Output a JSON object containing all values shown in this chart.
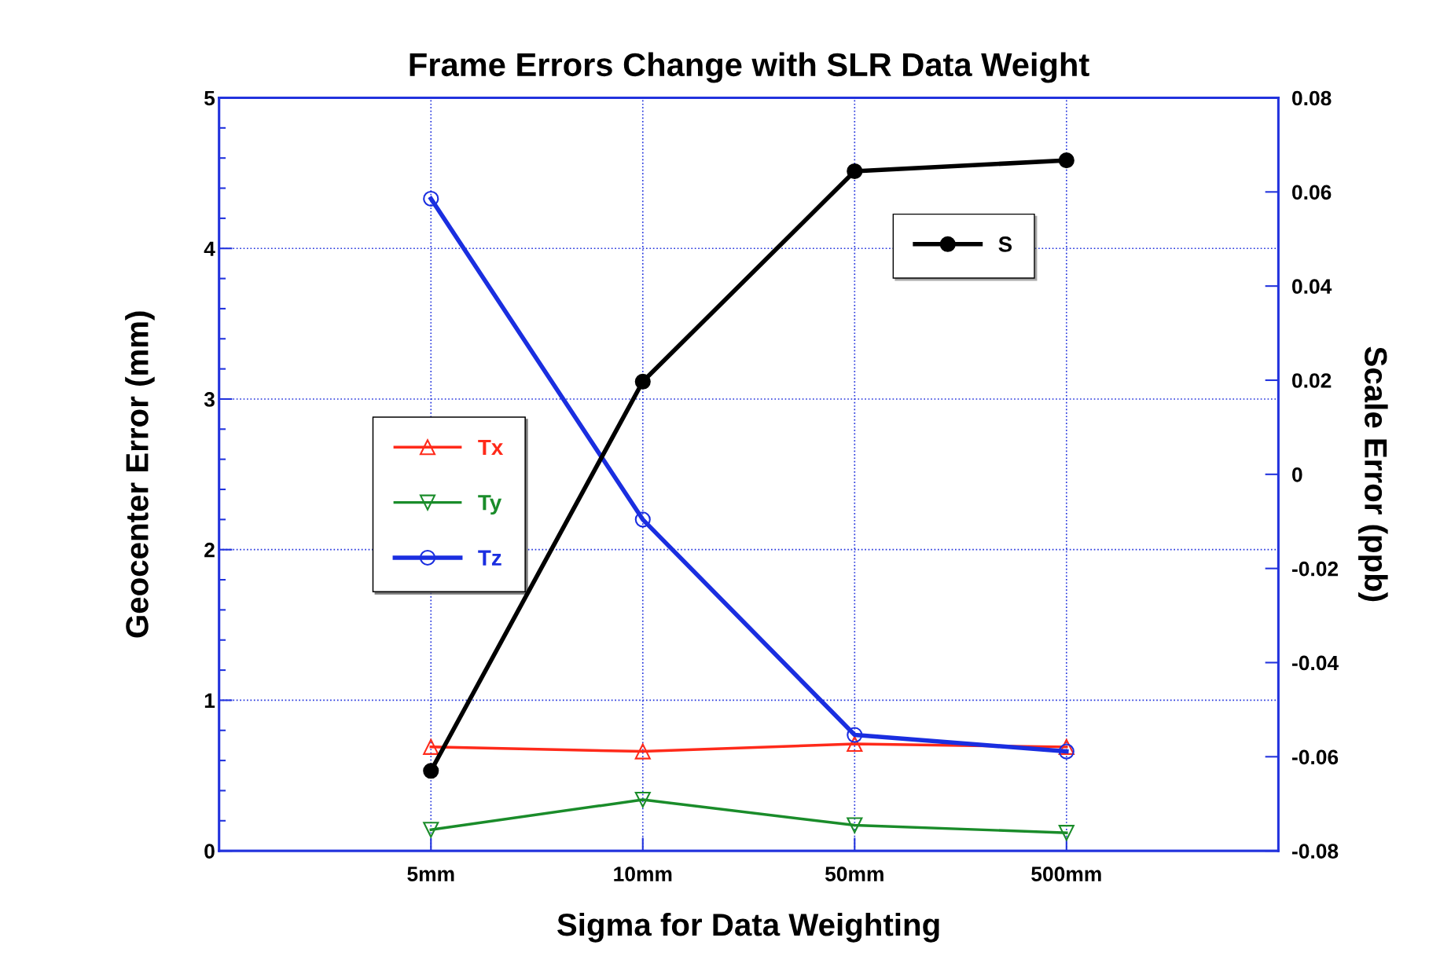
{
  "chart_data": {
    "type": "line",
    "title": "Frame Errors Change with SLR Data Weight",
    "xlabel": "Sigma for Data Weighting",
    "ylabel": "Geocenter Error (mm)",
    "y2label": "Scale Error (ppb)",
    "categories": [
      "5mm",
      "10mm",
      "50mm",
      "500mm"
    ],
    "ylim": [
      0,
      5
    ],
    "yticks": [
      0,
      1,
      2,
      3,
      4,
      5
    ],
    "y2lim": [
      -0.08,
      0.08
    ],
    "y2ticks": [
      -0.08,
      -0.06,
      -0.04,
      -0.02,
      0,
      0.02,
      0.04,
      0.06,
      0.08
    ],
    "grid": true,
    "legend": "left",
    "series": [
      {
        "name": "Tx",
        "color": "#ff2a1a",
        "values": [
          0.69,
          0.66,
          0.71,
          0.69
        ],
        "marker": "triangle"
      },
      {
        "name": "Ty",
        "color": "#1a8c2a",
        "values": [
          0.14,
          0.34,
          0.17,
          0.12
        ],
        "marker": "triangle_down"
      },
      {
        "name": "Tz",
        "color": "#1a2ee0",
        "values": [
          4.33,
          2.2,
          0.77,
          0.66
        ],
        "marker": "circle"
      },
      {
        "name": "S",
        "color": "#000000",
        "values": [
          -0.063,
          0.0197,
          0.0644,
          0.0667
        ],
        "marker": "circle",
        "axis": "y2"
      }
    ]
  }
}
